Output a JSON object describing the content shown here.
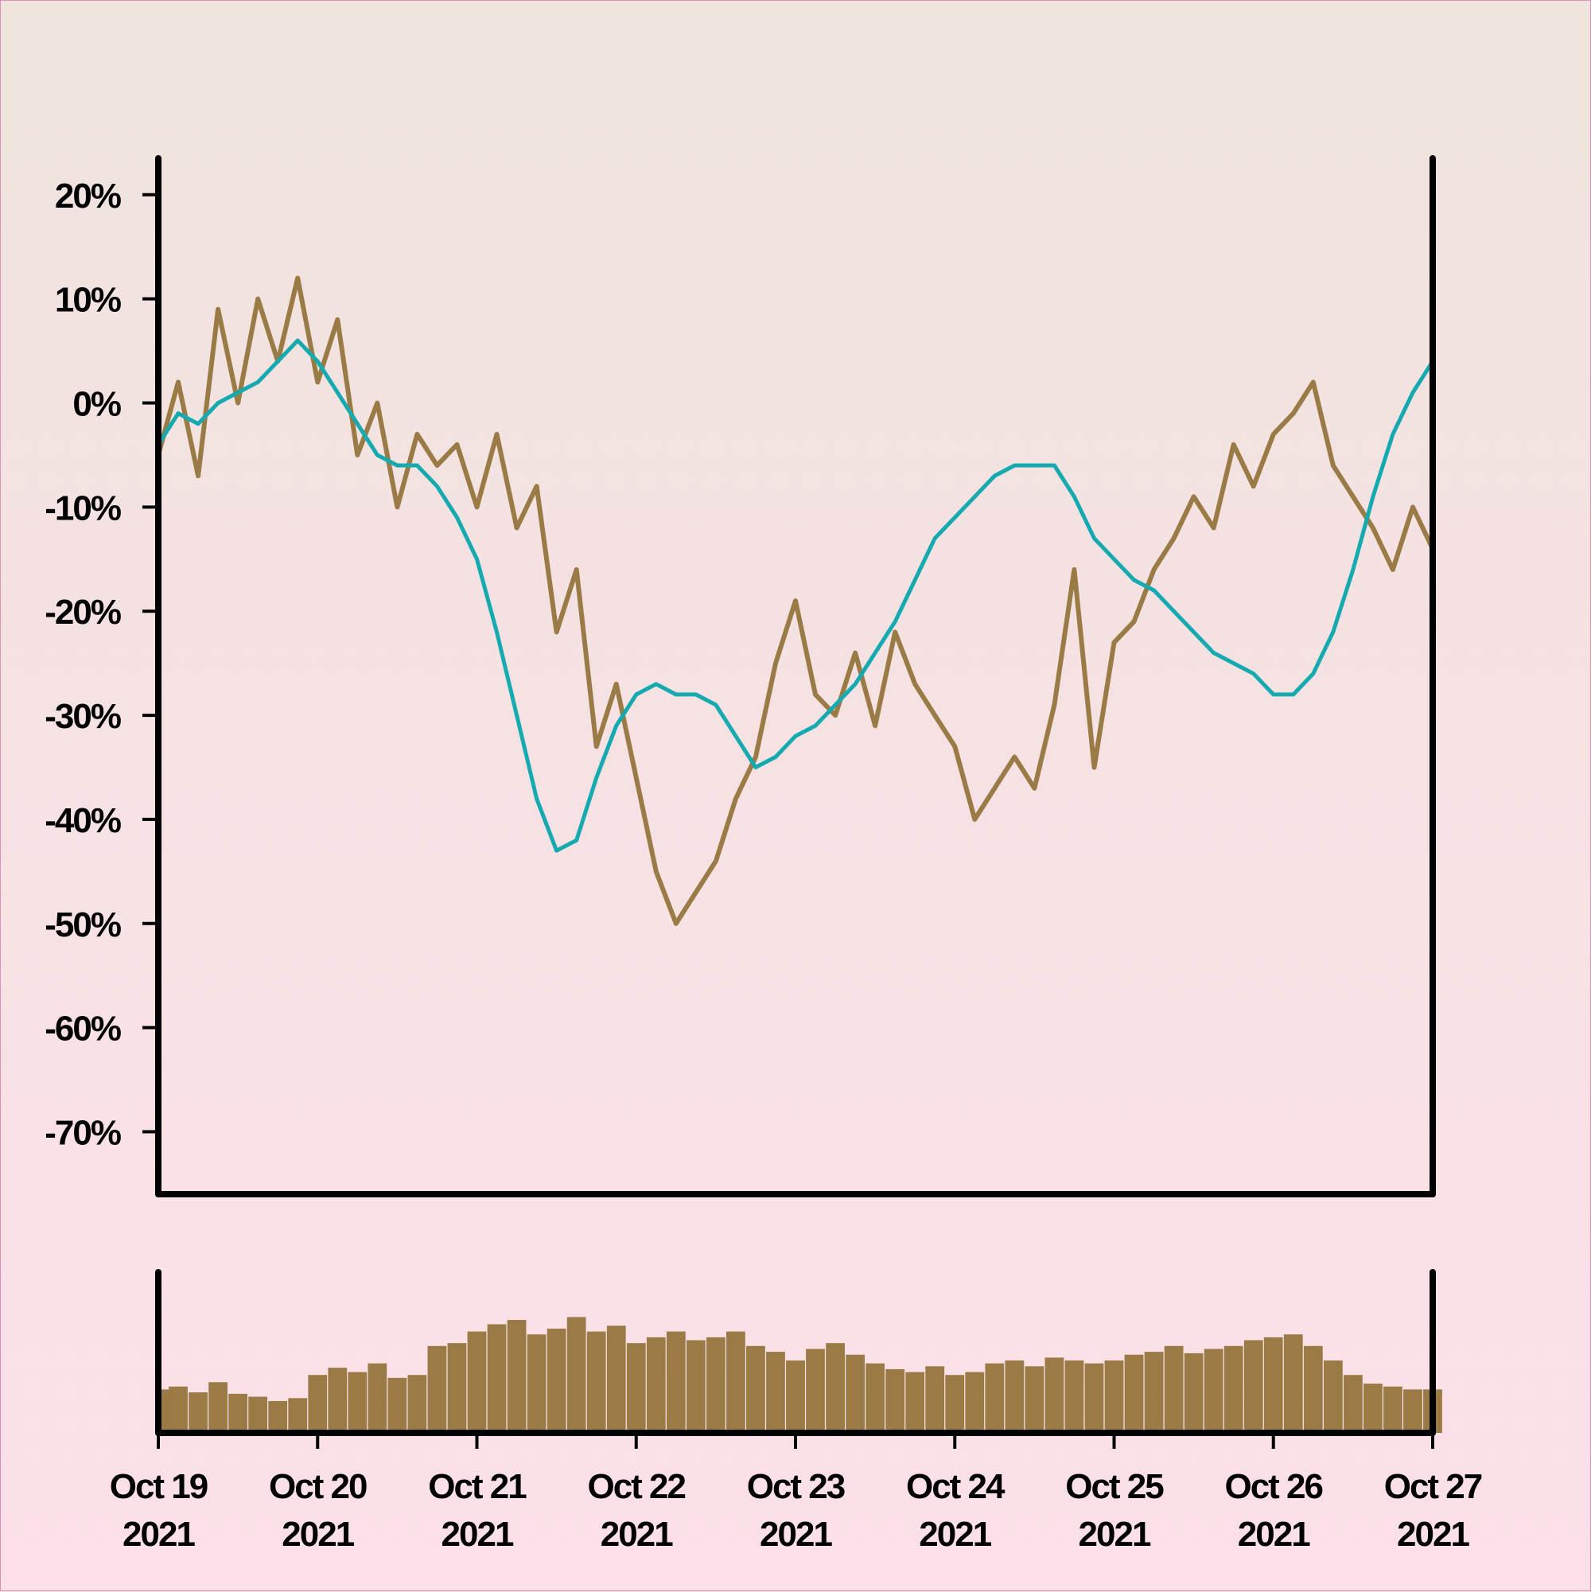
{
  "chart_data": {
    "type": "line",
    "title": "",
    "xlabel": "",
    "ylabel": "",
    "ylim": [
      -76,
      23.5
    ],
    "y_ticks": [
      {
        "value": 20,
        "label": "20%"
      },
      {
        "value": 10,
        "label": "10%"
      },
      {
        "value": 0,
        "label": "0%"
      },
      {
        "value": -10,
        "label": "-10%"
      },
      {
        "value": -20,
        "label": "-20%"
      },
      {
        "value": -30,
        "label": "-30%"
      },
      {
        "value": -40,
        "label": "-40%"
      },
      {
        "value": -50,
        "label": "-50%"
      },
      {
        "value": -60,
        "label": "-60%"
      },
      {
        "value": -70,
        "label": "-70%"
      }
    ],
    "x_ticks": [
      {
        "date": "2021-10-19",
        "line1": "Oct 19",
        "line2": "2021"
      },
      {
        "date": "2021-10-20",
        "line1": "Oct 20",
        "line2": "2021"
      },
      {
        "date": "2021-10-21",
        "line1": "Oct 21",
        "line2": "2021"
      },
      {
        "date": "2021-10-22",
        "line1": "Oct 22",
        "line2": "2021"
      },
      {
        "date": "2021-10-23",
        "line1": "Oct 23",
        "line2": "2021"
      },
      {
        "date": "2021-10-24",
        "line1": "Oct 24",
        "line2": "2021"
      },
      {
        "date": "2021-10-25",
        "line1": "Oct 25",
        "line2": "2021"
      },
      {
        "date": "2021-10-26",
        "line1": "Oct 26",
        "line2": "2021"
      },
      {
        "date": "2021-10-27",
        "line1": "Oct 27",
        "line2": "2021"
      }
    ],
    "colors": {
      "price": "#9a7b45",
      "moving_average": "#14aab0",
      "volume": "#9a7b45",
      "axis": "#000000"
    },
    "series": [
      {
        "key": "price",
        "x": [
          "2021-10-19T00:00",
          "2021-10-19T03:00",
          "2021-10-19T06:00",
          "2021-10-19T09:00",
          "2021-10-19T12:00",
          "2021-10-19T15:00",
          "2021-10-19T18:00",
          "2021-10-19T21:00",
          "2021-10-20T00:00",
          "2021-10-20T03:00",
          "2021-10-20T06:00",
          "2021-10-20T09:00",
          "2021-10-20T12:00",
          "2021-10-20T15:00",
          "2021-10-20T18:00",
          "2021-10-20T21:00",
          "2021-10-21T00:00",
          "2021-10-21T03:00",
          "2021-10-21T06:00",
          "2021-10-21T09:00",
          "2021-10-21T12:00",
          "2021-10-21T15:00",
          "2021-10-21T18:00",
          "2021-10-21T21:00",
          "2021-10-22T00:00",
          "2021-10-22T03:00",
          "2021-10-22T06:00",
          "2021-10-22T09:00",
          "2021-10-22T12:00",
          "2021-10-22T15:00",
          "2021-10-22T18:00",
          "2021-10-22T21:00",
          "2021-10-23T00:00",
          "2021-10-23T03:00",
          "2021-10-23T06:00",
          "2021-10-23T09:00",
          "2021-10-23T12:00",
          "2021-10-23T15:00",
          "2021-10-23T18:00",
          "2021-10-23T21:00",
          "2021-10-24T00:00",
          "2021-10-24T03:00",
          "2021-10-24T06:00",
          "2021-10-24T09:00",
          "2021-10-24T12:00",
          "2021-10-24T15:00",
          "2021-10-24T18:00",
          "2021-10-24T21:00",
          "2021-10-25T00:00",
          "2021-10-25T03:00",
          "2021-10-25T06:00",
          "2021-10-25T09:00",
          "2021-10-25T12:00",
          "2021-10-25T15:00",
          "2021-10-25T18:00",
          "2021-10-25T21:00",
          "2021-10-26T00:00",
          "2021-10-26T03:00",
          "2021-10-26T06:00",
          "2021-10-26T09:00",
          "2021-10-26T12:00",
          "2021-10-26T15:00",
          "2021-10-26T18:00",
          "2021-10-26T21:00",
          "2021-10-27T00:00"
        ],
        "values": [
          -5,
          2,
          -7,
          9,
          0,
          10,
          4,
          12,
          2,
          8,
          -5,
          0,
          -10,
          -3,
          -6,
          -4,
          -10,
          -3,
          -12,
          -8,
          -22,
          -16,
          -33,
          -27,
          -36,
          -45,
          -50,
          -47,
          -44,
          -38,
          -34,
          -25,
          -19,
          -28,
          -30,
          -24,
          -31,
          -22,
          -27,
          -30,
          -33,
          -40,
          -37,
          -34,
          -37,
          -29,
          -16,
          -35,
          -23,
          -21,
          -16,
          -13,
          -9,
          -12,
          -4,
          -8,
          -3,
          -1,
          2,
          -6,
          -9,
          -12,
          -16,
          -10,
          -14
        ]
      },
      {
        "key": "moving_average",
        "x": [
          "2021-10-19T00:00",
          "2021-10-19T03:00",
          "2021-10-19T06:00",
          "2021-10-19T09:00",
          "2021-10-19T12:00",
          "2021-10-19T15:00",
          "2021-10-19T18:00",
          "2021-10-19T21:00",
          "2021-10-20T00:00",
          "2021-10-20T03:00",
          "2021-10-20T06:00",
          "2021-10-20T09:00",
          "2021-10-20T12:00",
          "2021-10-20T15:00",
          "2021-10-20T18:00",
          "2021-10-20T21:00",
          "2021-10-21T00:00",
          "2021-10-21T03:00",
          "2021-10-21T06:00",
          "2021-10-21T09:00",
          "2021-10-21T12:00",
          "2021-10-21T15:00",
          "2021-10-21T18:00",
          "2021-10-21T21:00",
          "2021-10-22T00:00",
          "2021-10-22T03:00",
          "2021-10-22T06:00",
          "2021-10-22T09:00",
          "2021-10-22T12:00",
          "2021-10-22T15:00",
          "2021-10-22T18:00",
          "2021-10-22T21:00",
          "2021-10-23T00:00",
          "2021-10-23T03:00",
          "2021-10-23T06:00",
          "2021-10-23T09:00",
          "2021-10-23T12:00",
          "2021-10-23T15:00",
          "2021-10-23T18:00",
          "2021-10-23T21:00",
          "2021-10-24T00:00",
          "2021-10-24T03:00",
          "2021-10-24T06:00",
          "2021-10-24T09:00",
          "2021-10-24T12:00",
          "2021-10-24T15:00",
          "2021-10-24T18:00",
          "2021-10-24T21:00",
          "2021-10-25T00:00",
          "2021-10-25T03:00",
          "2021-10-25T06:00",
          "2021-10-25T09:00",
          "2021-10-25T12:00",
          "2021-10-25T15:00",
          "2021-10-25T18:00",
          "2021-10-25T21:00",
          "2021-10-26T00:00",
          "2021-10-26T03:00",
          "2021-10-26T06:00",
          "2021-10-26T09:00",
          "2021-10-26T12:00",
          "2021-10-26T15:00",
          "2021-10-26T18:00",
          "2021-10-26T21:00",
          "2021-10-27T00:00"
        ],
        "values": [
          -4,
          -1,
          -2,
          0,
          1,
          2,
          4,
          6,
          4,
          1,
          -2,
          -5,
          -6,
          -6,
          -8,
          -11,
          -15,
          -22,
          -30,
          -38,
          -43,
          -42,
          -36,
          -31,
          -28,
          -27,
          -28,
          -28,
          -29,
          -32,
          -35,
          -34,
          -32,
          -31,
          -29,
          -27,
          -24,
          -21,
          -17,
          -13,
          -11,
          -9,
          -7,
          -6,
          -6,
          -6,
          -9,
          -13,
          -15,
          -17,
          -18,
          -20,
          -22,
          -24,
          -25,
          -26,
          -28,
          -28,
          -26,
          -22,
          -16,
          -9,
          -3,
          1,
          4
        ]
      }
    ],
    "volume": {
      "x": [
        "2021-10-19T00:00",
        "2021-10-19T03:00",
        "2021-10-19T06:00",
        "2021-10-19T09:00",
        "2021-10-19T12:00",
        "2021-10-19T15:00",
        "2021-10-19T18:00",
        "2021-10-19T21:00",
        "2021-10-20T00:00",
        "2021-10-20T03:00",
        "2021-10-20T06:00",
        "2021-10-20T09:00",
        "2021-10-20T12:00",
        "2021-10-20T15:00",
        "2021-10-20T18:00",
        "2021-10-20T21:00",
        "2021-10-21T00:00",
        "2021-10-21T03:00",
        "2021-10-21T06:00",
        "2021-10-21T09:00",
        "2021-10-21T12:00",
        "2021-10-21T15:00",
        "2021-10-21T18:00",
        "2021-10-21T21:00",
        "2021-10-22T00:00",
        "2021-10-22T03:00",
        "2021-10-22T06:00",
        "2021-10-22T09:00",
        "2021-10-22T12:00",
        "2021-10-22T15:00",
        "2021-10-22T18:00",
        "2021-10-22T21:00",
        "2021-10-23T00:00",
        "2021-10-23T03:00",
        "2021-10-23T06:00",
        "2021-10-23T09:00",
        "2021-10-23T12:00",
        "2021-10-23T15:00",
        "2021-10-23T18:00",
        "2021-10-23T21:00",
        "2021-10-24T00:00",
        "2021-10-24T03:00",
        "2021-10-24T06:00",
        "2021-10-24T09:00",
        "2021-10-24T12:00",
        "2021-10-24T15:00",
        "2021-10-24T18:00",
        "2021-10-24T21:00",
        "2021-10-25T00:00",
        "2021-10-25T03:00",
        "2021-10-25T06:00",
        "2021-10-25T09:00",
        "2021-10-25T12:00",
        "2021-10-25T15:00",
        "2021-10-25T18:00",
        "2021-10-25T21:00",
        "2021-10-26T00:00",
        "2021-10-26T03:00",
        "2021-10-26T06:00",
        "2021-10-26T09:00",
        "2021-10-26T12:00",
        "2021-10-26T15:00",
        "2021-10-26T18:00",
        "2021-10-26T21:00",
        "2021-10-27T00:00"
      ],
      "values": [
        0.3,
        0.32,
        0.28,
        0.35,
        0.27,
        0.25,
        0.22,
        0.24,
        0.4,
        0.45,
        0.42,
        0.48,
        0.38,
        0.4,
        0.6,
        0.62,
        0.7,
        0.75,
        0.78,
        0.68,
        0.72,
        0.8,
        0.7,
        0.74,
        0.62,
        0.66,
        0.7,
        0.64,
        0.66,
        0.7,
        0.6,
        0.56,
        0.5,
        0.58,
        0.62,
        0.54,
        0.48,
        0.44,
        0.42,
        0.46,
        0.4,
        0.42,
        0.48,
        0.5,
        0.46,
        0.52,
        0.5,
        0.48,
        0.5,
        0.54,
        0.56,
        0.6,
        0.55,
        0.58,
        0.6,
        0.64,
        0.66,
        0.68,
        0.6,
        0.5,
        0.4,
        0.34,
        0.32,
        0.3,
        0.3
      ]
    }
  }
}
